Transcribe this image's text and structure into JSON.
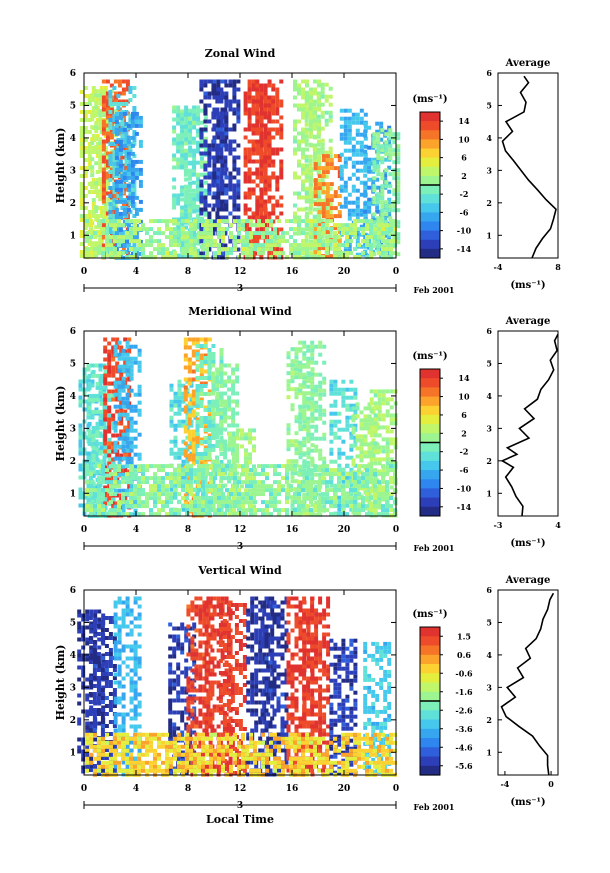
{
  "figure": {
    "x_label": "Local Time",
    "date_label": "Feb 2001",
    "day_label": "3",
    "x_ticks": [
      "0",
      "4",
      "8",
      "12",
      "16",
      "20",
      "0"
    ],
    "height_label": "Height (km)",
    "unit_label": "(ms⁻¹)",
    "average_title": "Average",
    "average_xlabel": "(ms⁻¹)",
    "height_ticks": [
      "1",
      "2",
      "3",
      "4",
      "5",
      "6"
    ],
    "cbar_colors": [
      "#232C84",
      "#2C3FB8",
      "#2F5FDB",
      "#2F86EE",
      "#36A7EE",
      "#46C8EC",
      "#5FE0D8",
      "#7CF0B8",
      "#9CF590",
      "#C0F66A",
      "#E3EE3F",
      "#FBD231",
      "#FBA32A",
      "#F67428",
      "#EE4B2A",
      "#E0322E"
    ]
  },
  "chart_data": [
    {
      "type": "heatmap",
      "title": "Zonal Wind",
      "xlim": [
        0,
        24
      ],
      "ylim": [
        0.3,
        6
      ],
      "colorbar_ticks": [
        "14",
        "10",
        "6",
        "2",
        "-2",
        "-6",
        "-10",
        "-14"
      ],
      "colorbar_range": [
        -16,
        16
      ],
      "columns": [
        {
          "t": 0.6,
          "top": 5.6,
          "level": 0.62
        },
        {
          "t": 1.4,
          "top": 5.5,
          "level": 0.58
        },
        {
          "t": 2.3,
          "top": 5.8,
          "level": 0.9
        },
        {
          "t": 2.8,
          "top": 5.6,
          "level": 0.35
        },
        {
          "t": 3.3,
          "top": 4.8,
          "level": 0.25
        },
        {
          "t": 7.7,
          "top": 5.0,
          "level": 0.45
        },
        {
          "t": 8.3,
          "top": 4.9,
          "level": 0.45
        },
        {
          "t": 9.8,
          "top": 5.8,
          "level": 0.05
        },
        {
          "t": 10.8,
          "top": 5.8,
          "level": 0.06
        },
        {
          "t": 13.2,
          "top": 5.8,
          "level": 0.97
        },
        {
          "t": 14.1,
          "top": 5.8,
          "level": 0.96
        },
        {
          "t": 17.0,
          "top": 5.8,
          "level": 0.55
        },
        {
          "t": 17.9,
          "top": 5.7,
          "level": 0.55
        },
        {
          "t": 18.6,
          "top": 3.5,
          "level": 0.85
        },
        {
          "t": 20.6,
          "top": 4.9,
          "level": 0.3
        },
        {
          "t": 22.4,
          "top": 4.5,
          "level": 0.28
        },
        {
          "t": 23.1,
          "top": 4.3,
          "level": 0.5
        }
      ],
      "ground": {
        "top": 1.5,
        "level": 0.55
      },
      "average": {
        "xlim": [
          -4,
          8
        ],
        "xticks": [
          "-4",
          "8"
        ],
        "h": [
          0.3,
          0.6,
          0.9,
          1.2,
          1.5,
          1.8,
          2.1,
          2.4,
          2.7,
          3.0,
          3.3,
          3.6,
          3.9,
          4.2,
          4.5,
          4.8,
          5.1,
          5.4,
          5.7,
          5.9
        ],
        "v": [
          2.8,
          3.6,
          4.9,
          6.5,
          7.1,
          7.6,
          5.6,
          3.9,
          2.1,
          0.6,
          -0.9,
          -2.5,
          -3.1,
          -1.1,
          -2.4,
          1.2,
          1.6,
          0.5,
          2.1,
          1.2
        ]
      }
    },
    {
      "type": "heatmap",
      "title": "Meridional Wind",
      "xlim": [
        0,
        24
      ],
      "ylim": [
        0.3,
        6
      ],
      "colorbar_ticks": [
        "14",
        "10",
        "6",
        "2",
        "-2",
        "-6",
        "-10",
        "-14"
      ],
      "colorbar_range": [
        -16,
        16
      ],
      "columns": [
        {
          "t": 0.5,
          "top": 5.0,
          "level": 0.4
        },
        {
          "t": 1.2,
          "top": 4.8,
          "level": 0.42
        },
        {
          "t": 2.4,
          "top": 5.8,
          "level": 0.95
        },
        {
          "t": 3.2,
          "top": 5.7,
          "level": 0.3
        },
        {
          "t": 7.5,
          "top": 4.5,
          "level": 0.4
        },
        {
          "t": 8.6,
          "top": 5.8,
          "level": 0.78
        },
        {
          "t": 9.5,
          "top": 5.6,
          "level": 0.45
        },
        {
          "t": 10.7,
          "top": 5.0,
          "level": 0.5
        },
        {
          "t": 12.0,
          "top": 3.0,
          "level": 0.55
        },
        {
          "t": 16.5,
          "top": 5.5,
          "level": 0.52
        },
        {
          "t": 17.4,
          "top": 5.7,
          "level": 0.5
        },
        {
          "t": 19.8,
          "top": 4.5,
          "level": 0.4
        },
        {
          "t": 21.5,
          "top": 3.8,
          "level": 0.55
        },
        {
          "t": 22.9,
          "top": 4.2,
          "level": 0.55
        }
      ],
      "ground": {
        "top": 1.9,
        "level": 0.5
      },
      "average": {
        "xlim": [
          -3,
          4
        ],
        "xticks": [
          "-3",
          "4"
        ],
        "h": [
          0.3,
          0.6,
          0.9,
          1.2,
          1.5,
          1.8,
          2.0,
          2.2,
          2.4,
          2.7,
          3.0,
          3.3,
          3.6,
          3.9,
          4.2,
          4.5,
          4.8,
          5.1,
          5.4,
          5.7,
          5.9
        ],
        "v": [
          -0.2,
          -0.1,
          -0.9,
          -1.4,
          -2.1,
          -1.2,
          -2.5,
          -0.8,
          -1.9,
          0.6,
          -0.5,
          1.2,
          0.1,
          1.6,
          2.0,
          2.9,
          3.5,
          3.1,
          3.9,
          3.6,
          4.0
        ]
      }
    },
    {
      "type": "heatmap",
      "title": "Vertical Wind",
      "xlim": [
        0,
        24
      ],
      "ylim": [
        0.3,
        6
      ],
      "colorbar_ticks": [
        "1.5",
        "0.6",
        "-0.6",
        "-1.6",
        "-2.6",
        "-3.6",
        "-4.6",
        "-5.6"
      ],
      "colorbar_range": [
        -6.1,
        2.0
      ],
      "columns": [
        {
          "t": 0.4,
          "top": 5.4,
          "level": 0.04
        },
        {
          "t": 1.3,
          "top": 5.2,
          "level": 0.05
        },
        {
          "t": 3.2,
          "top": 5.8,
          "level": 0.3
        },
        {
          "t": 7.4,
          "top": 5.0,
          "level": 0.06
        },
        {
          "t": 8.8,
          "top": 5.8,
          "level": 0.95
        },
        {
          "t": 10.2,
          "top": 5.8,
          "level": 0.97
        },
        {
          "t": 11.3,
          "top": 5.6,
          "level": 0.96
        },
        {
          "t": 13.4,
          "top": 5.8,
          "level": 0.04
        },
        {
          "t": 14.5,
          "top": 5.8,
          "level": 0.05
        },
        {
          "t": 16.5,
          "top": 5.8,
          "level": 0.97
        },
        {
          "t": 17.7,
          "top": 5.8,
          "level": 0.97
        },
        {
          "t": 19.8,
          "top": 4.5,
          "level": 0.06
        },
        {
          "t": 22.4,
          "top": 4.4,
          "level": 0.35
        }
      ],
      "ground": {
        "top": 1.6,
        "level": 0.72
      },
      "average": {
        "xlim": [
          -4.6,
          0.6
        ],
        "xticks": [
          "-4",
          "0"
        ],
        "h": [
          0.3,
          0.6,
          0.9,
          1.2,
          1.5,
          1.8,
          2.1,
          2.4,
          2.7,
          3.0,
          3.3,
          3.6,
          3.9,
          4.2,
          4.5,
          4.8,
          5.1,
          5.4,
          5.7,
          5.9
        ],
        "v": [
          -0.2,
          -0.3,
          -0.3,
          -1.0,
          -1.6,
          -2.8,
          -3.9,
          -4.3,
          -3.1,
          -3.8,
          -2.4,
          -2.9,
          -1.8,
          -2.2,
          -1.3,
          -0.9,
          -0.7,
          -0.3,
          -0.1,
          0.2
        ]
      }
    }
  ]
}
